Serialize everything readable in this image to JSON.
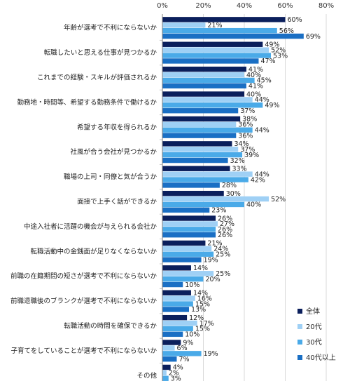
{
  "chart_data": {
    "type": "bar",
    "orientation": "horizontal",
    "xlim": [
      0,
      80
    ],
    "x_ticks": [
      "0%",
      "20%",
      "40%",
      "60%",
      "80%"
    ],
    "x_tick_values": [
      0,
      20,
      40,
      60,
      80
    ],
    "value_suffix": "%",
    "categories": [
      "年齢が選考で不利にならないか",
      "転職したいと思える仕事が見つかるか",
      "これまでの経験・スキルが評価されるか",
      "勤務地・時間等、希望する勤務条件で働けるか",
      "希望する年収を得られるか",
      "社風が合う会社が見つかるか",
      "職場の上司・同僚と気が合うか",
      "面接で上手く話ができるか",
      "中途入社者に活躍の機会が与えられる会社か",
      "転職活動中の金銭面が足りなくならないか",
      "前職の在籍期間の短さが選考で不利にならないか",
      "前職退職後のブランクが選考で不利にならないか",
      "転職活動の時間を確保できるか",
      "子育てをしていることが選考で不利にならないか",
      "その他"
    ],
    "series": [
      {
        "name": "全体",
        "color": "#0b1f5c",
        "values": [
          60,
          49,
          41,
          40,
          38,
          34,
          33,
          30,
          26,
          21,
          14,
          14,
          12,
          9,
          4
        ]
      },
      {
        "name": "20代",
        "color": "#9fd0f5",
        "values": [
          21,
          52,
          40,
          44,
          36,
          37,
          44,
          52,
          27,
          24,
          25,
          16,
          17,
          6,
          2
        ]
      },
      {
        "name": "30代",
        "color": "#4aaae8",
        "values": [
          56,
          53,
          45,
          49,
          44,
          39,
          42,
          40,
          26,
          25,
          20,
          15,
          15,
          19,
          3
        ]
      },
      {
        "name": "40代以上",
        "color": "#1a6fc4",
        "values": [
          69,
          47,
          41,
          37,
          36,
          32,
          28,
          23,
          26,
          19,
          10,
          13,
          10,
          7,
          5
        ]
      }
    ],
    "legend_position": "bottom-right",
    "grid": true
  }
}
